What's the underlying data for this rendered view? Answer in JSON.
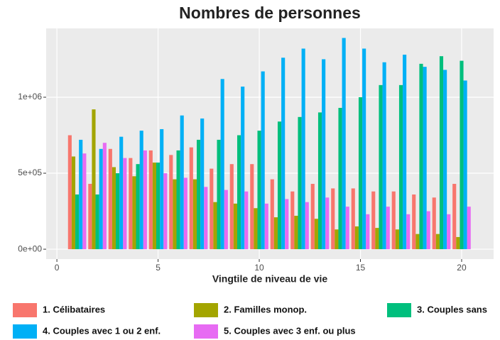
{
  "chart_data": {
    "type": "bar",
    "title": "Nombres de personnes",
    "x_label": "Vingtile de niveau de vie",
    "x": [
      1,
      2,
      3,
      4,
      5,
      6,
      7,
      8,
      9,
      10,
      11,
      12,
      13,
      14,
      15,
      16,
      17,
      18,
      19,
      20
    ],
    "series": [
      {
        "name": "1. Célibataires",
        "color": "#F8766D",
        "values": [
          750000,
          430000,
          660000,
          600000,
          650000,
          620000,
          670000,
          530000,
          560000,
          560000,
          460000,
          380000,
          430000,
          400000,
          400000,
          380000,
          380000,
          360000,
          340000,
          430000
        ]
      },
      {
        "name": "2. Familles monop.",
        "color": "#A3A500",
        "values": [
          610000,
          920000,
          540000,
          480000,
          570000,
          460000,
          460000,
          310000,
          300000,
          270000,
          210000,
          220000,
          200000,
          130000,
          150000,
          140000,
          130000,
          100000,
          100000,
          80000
        ]
      },
      {
        "name": "3. Couples sans",
        "color": "#00BF7D",
        "values": [
          360000,
          360000,
          500000,
          560000,
          570000,
          650000,
          720000,
          720000,
          750000,
          780000,
          840000,
          870000,
          900000,
          930000,
          1000000,
          1080000,
          1080000,
          1220000,
          1270000,
          1240000
        ]
      },
      {
        "name": "4. Couples avec 1 ou 2 enf.",
        "color": "#00B0F6",
        "values": [
          720000,
          660000,
          740000,
          780000,
          790000,
          880000,
          860000,
          1120000,
          1070000,
          1170000,
          1260000,
          1320000,
          1250000,
          1390000,
          1320000,
          1230000,
          1280000,
          1200000,
          1180000,
          1110000
        ]
      },
      {
        "name": "5. Couples avec 3 enf. ou plus",
        "color": "#E76BF3",
        "values": [
          630000,
          700000,
          600000,
          650000,
          500000,
          470000,
          410000,
          390000,
          380000,
          300000,
          330000,
          310000,
          340000,
          280000,
          230000,
          280000,
          230000,
          250000,
          230000,
          280000
        ]
      }
    ],
    "xlim": [
      -0.53,
      21.58
    ],
    "xticks": [
      0,
      5,
      10,
      15,
      20
    ],
    "ylim": [
      -65000,
      1453000
    ],
    "yticks": [
      {
        "value": 0,
        "label": "0e+00"
      },
      {
        "value": 500000,
        "label": "5e+05"
      },
      {
        "value": 1000000,
        "label": "1e+06"
      }
    ],
    "grid": true,
    "legend": "bottom"
  }
}
